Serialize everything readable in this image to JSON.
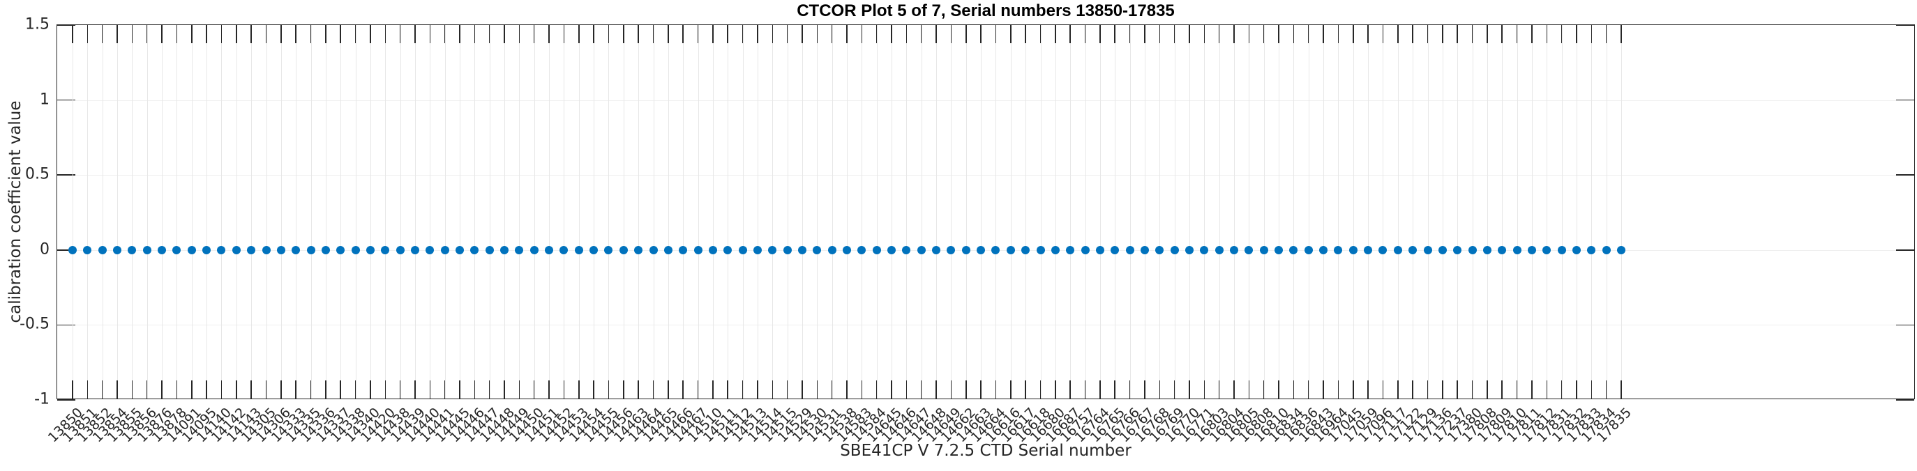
{
  "chart_data": {
    "type": "scatter",
    "title": "CTCOR Plot 5 of 7, Serial numbers 13850-17835",
    "xlabel": "SBE41CP V 7.2.5 CTD Serial number",
    "ylabel": "calibration coefficient value",
    "ylim": [
      -1,
      1.5
    ],
    "yticks": [
      1.5,
      1,
      0.5,
      0,
      -0.5,
      -1
    ],
    "ytick_labels": [
      "1.5",
      "1",
      "0.5",
      "0",
      "-0.5",
      "-1"
    ],
    "grid": true,
    "legend": "none",
    "marker_color": "#0072BD",
    "axis_color": "#262626",
    "grid_color": "#e7e7e7",
    "x_tick_rotation_deg": 45,
    "categories": [
      "13850",
      "13851",
      "13852",
      "13854",
      "13855",
      "13856",
      "13876",
      "13878",
      "14091",
      "14095",
      "14140",
      "14142",
      "14143",
      "14305",
      "14306",
      "14333",
      "14335",
      "14336",
      "14337",
      "14338",
      "14340",
      "14420",
      "14438",
      "14439",
      "14440",
      "14441",
      "14445",
      "14446",
      "14447",
      "14448",
      "14449",
      "14450",
      "14451",
      "14452",
      "14453",
      "14454",
      "14455",
      "14456",
      "14463",
      "14464",
      "14465",
      "14466",
      "14467",
      "14510",
      "14511",
      "14512",
      "14513",
      "14514",
      "14515",
      "14529",
      "14530",
      "14531",
      "14538",
      "14583",
      "14584",
      "14645",
      "14646",
      "14647",
      "14648",
      "14649",
      "14662",
      "14663",
      "14664",
      "16616",
      "16617",
      "16618",
      "16680",
      "16687",
      "16757",
      "16764",
      "16765",
      "16766",
      "16767",
      "16768",
      "16769",
      "16770",
      "16771",
      "16803",
      "16804",
      "16805",
      "16808",
      "16810",
      "16834",
      "16836",
      "16843",
      "16964",
      "17045",
      "17059",
      "17096",
      "17117",
      "17122",
      "17129",
      "17136",
      "17237",
      "17380",
      "17808",
      "17809",
      "17810",
      "17811",
      "17812",
      "17831",
      "17832",
      "17833",
      "17834",
      "17835"
    ],
    "values": [
      0,
      0,
      0,
      0,
      0,
      0,
      0,
      0,
      0,
      0,
      0,
      0,
      0,
      0,
      0,
      0,
      0,
      0,
      0,
      0,
      0,
      0,
      0,
      0,
      0,
      0,
      0,
      0,
      0,
      0,
      0,
      0,
      0,
      0,
      0,
      0,
      0,
      0,
      0,
      0,
      0,
      0,
      0,
      0,
      0,
      0,
      0,
      0,
      0,
      0,
      0,
      0,
      0,
      0,
      0,
      0,
      0,
      0,
      0,
      0,
      0,
      0,
      0,
      0,
      0,
      0,
      0,
      0,
      0,
      0,
      0,
      0,
      0,
      0,
      0,
      0,
      0,
      0,
      0,
      0,
      0,
      0,
      0,
      0,
      0,
      0,
      0,
      0,
      0,
      0,
      0,
      0,
      0,
      0,
      0,
      0,
      0,
      0,
      0,
      0,
      0,
      0,
      0,
      0,
      0
    ]
  }
}
